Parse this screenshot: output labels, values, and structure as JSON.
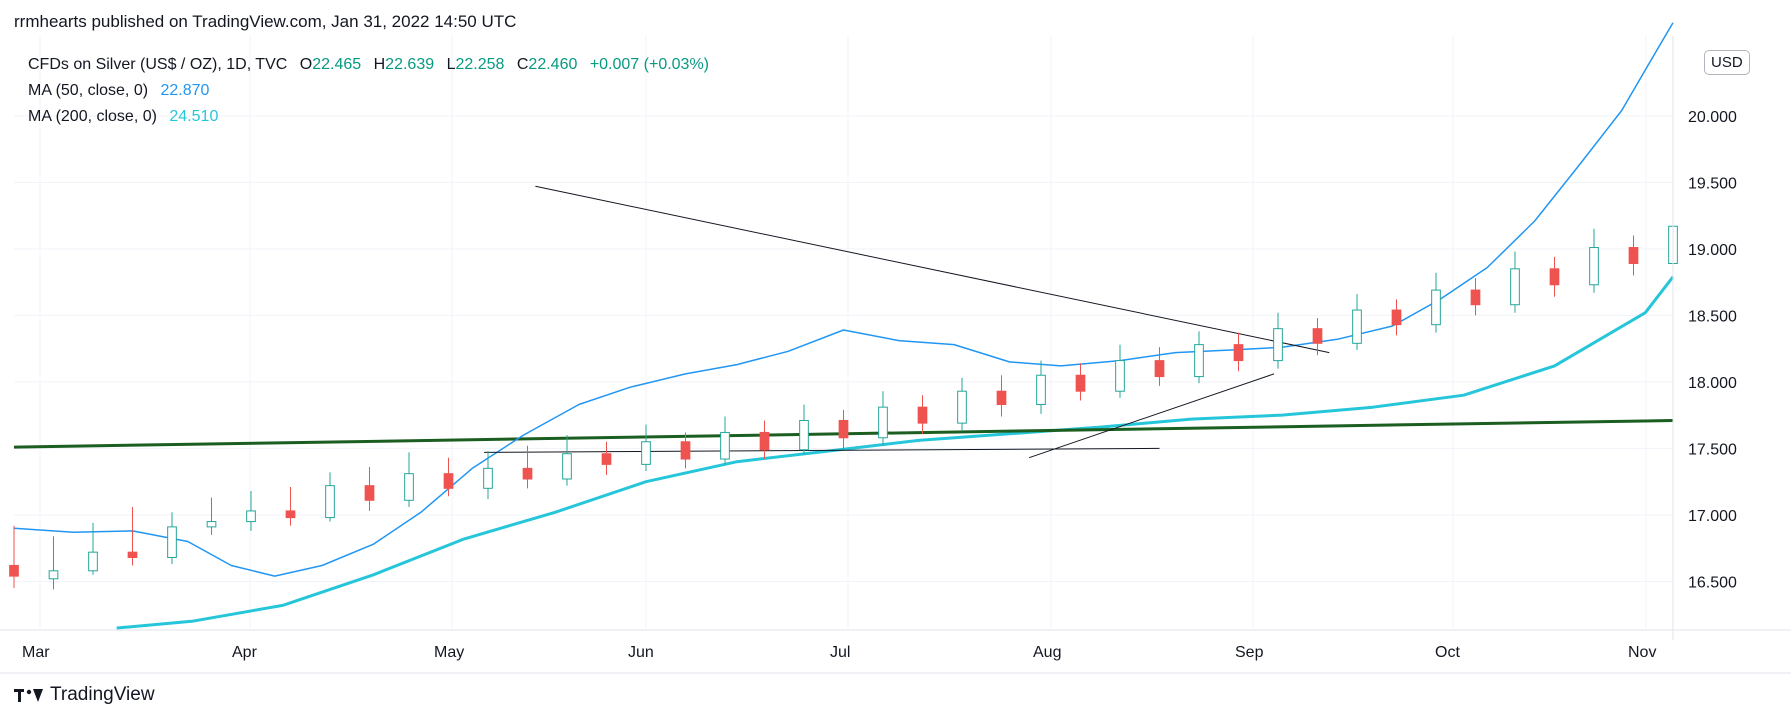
{
  "header": {
    "publisher_line": "rrmhearts published on TradingView.com, Jan 31, 2022 14:50 UTC"
  },
  "legend": {
    "symbol": "CFDs on Silver (US$ / OZ), 1D, TVC",
    "o_label": "O",
    "o_value": "22.465",
    "h_label": "H",
    "h_value": "22.639",
    "l_label": "L",
    "l_value": "22.258",
    "c_label": "C",
    "c_value": "22.460",
    "change": "+0.007 (+0.03%)",
    "ma50_label": "MA (50, close, 0)",
    "ma50_value": "22.870",
    "ma200_label": "MA (200, close, 0)",
    "ma200_value": "24.510"
  },
  "currency": "USD",
  "footer": {
    "brand": "TradingView"
  },
  "colors": {
    "up": "#26a69a",
    "down": "#ef5350",
    "ma50": "#2196f3",
    "ma200": "#26c6da",
    "support": "#1b5e20",
    "trendline": "#131722"
  },
  "chart_data": {
    "type": "candlestick",
    "x_tick_labels": [
      "Mar",
      "Apr",
      "May",
      "Jun",
      "Jul",
      "Aug",
      "Sep",
      "Oct",
      "Nov"
    ],
    "y_tick_labels": [
      "16.500",
      "17.000",
      "17.500",
      "18.000",
      "18.500",
      "19.000",
      "19.500",
      "20.000"
    ],
    "y_ticks": [
      16.5,
      17.0,
      17.5,
      18.0,
      18.5,
      19.0,
      19.5,
      20.0
    ],
    "ylim": [
      16.15,
      20.6
    ],
    "x_domain": [
      0,
      42
    ],
    "candles": [
      [
        16.62,
        16.54,
        16.92,
        16.45
      ],
      [
        16.52,
        16.58,
        16.84,
        16.44
      ],
      [
        16.58,
        16.72,
        16.94,
        16.55
      ],
      [
        16.72,
        16.68,
        17.06,
        16.62
      ],
      [
        16.68,
        16.91,
        17.02,
        16.63
      ],
      [
        16.91,
        16.95,
        17.13,
        16.85
      ],
      [
        16.95,
        17.03,
        17.18,
        16.88
      ],
      [
        17.03,
        16.98,
        17.21,
        16.92
      ],
      [
        16.98,
        17.22,
        17.32,
        16.95
      ],
      [
        17.22,
        17.11,
        17.36,
        17.03
      ],
      [
        17.11,
        17.31,
        17.47,
        17.06
      ],
      [
        17.31,
        17.2,
        17.43,
        17.14
      ],
      [
        17.2,
        17.35,
        17.48,
        17.12
      ],
      [
        17.35,
        17.27,
        17.52,
        17.2
      ],
      [
        17.27,
        17.46,
        17.6,
        17.22
      ],
      [
        17.46,
        17.38,
        17.55,
        17.3
      ],
      [
        17.38,
        17.55,
        17.68,
        17.33
      ],
      [
        17.55,
        17.42,
        17.62,
        17.35
      ],
      [
        17.42,
        17.62,
        17.74,
        17.38
      ],
      [
        17.62,
        17.49,
        17.71,
        17.42
      ],
      [
        17.49,
        17.71,
        17.83,
        17.45
      ],
      [
        17.71,
        17.58,
        17.79,
        17.49
      ],
      [
        17.58,
        17.81,
        17.93,
        17.52
      ],
      [
        17.81,
        17.69,
        17.9,
        17.61
      ],
      [
        17.69,
        17.93,
        18.03,
        17.63
      ],
      [
        17.93,
        17.83,
        18.05,
        17.74
      ],
      [
        17.83,
        18.05,
        18.16,
        17.76
      ],
      [
        18.05,
        17.93,
        18.14,
        17.86
      ],
      [
        17.93,
        18.16,
        18.28,
        17.88
      ],
      [
        18.16,
        18.04,
        18.26,
        17.97
      ],
      [
        18.04,
        18.28,
        18.38,
        17.99
      ],
      [
        18.28,
        18.16,
        18.37,
        18.08
      ],
      [
        18.16,
        18.4,
        18.52,
        18.1
      ],
      [
        18.4,
        18.29,
        18.48,
        18.2
      ],
      [
        18.29,
        18.54,
        18.66,
        18.24
      ],
      [
        18.54,
        18.43,
        18.62,
        18.35
      ],
      [
        18.43,
        18.69,
        18.82,
        18.37
      ],
      [
        18.69,
        18.58,
        18.78,
        18.5
      ],
      [
        18.58,
        18.85,
        18.98,
        18.52
      ],
      [
        18.85,
        18.73,
        18.94,
        18.64
      ],
      [
        18.73,
        19.01,
        19.15,
        18.67
      ],
      [
        19.01,
        18.89,
        19.1,
        18.8
      ],
      [
        18.89,
        19.17,
        19.3,
        18.84
      ]
    ],
    "ma50_series": [
      [
        0,
        16.9
      ],
      [
        1.5,
        16.87
      ],
      [
        3,
        16.88
      ],
      [
        4.4,
        16.8
      ],
      [
        5.5,
        16.62
      ],
      [
        6.6,
        16.54
      ],
      [
        7.8,
        16.62
      ],
      [
        9.1,
        16.78
      ],
      [
        10.3,
        17.02
      ],
      [
        11.6,
        17.35
      ],
      [
        12.9,
        17.6
      ],
      [
        14.3,
        17.83
      ],
      [
        15.6,
        17.96
      ],
      [
        17.0,
        18.06
      ],
      [
        18.3,
        18.13
      ],
      [
        19.6,
        18.23
      ],
      [
        21.0,
        18.39
      ],
      [
        22.4,
        18.31
      ],
      [
        23.8,
        18.28
      ],
      [
        25.2,
        18.15
      ],
      [
        26.5,
        18.12
      ],
      [
        28.0,
        18.16
      ],
      [
        29.4,
        18.22
      ],
      [
        30.8,
        18.24
      ],
      [
        32.1,
        18.26
      ],
      [
        33.5,
        18.32
      ],
      [
        34.9,
        18.42
      ],
      [
        36.1,
        18.62
      ],
      [
        37.3,
        18.86
      ],
      [
        38.5,
        19.21
      ],
      [
        39.6,
        19.62
      ],
      [
        40.7,
        20.04
      ],
      [
        41.7,
        20.55
      ],
      [
        42.0,
        20.7
      ]
    ],
    "ma200_series": [
      [
        2.6,
        16.15
      ],
      [
        4.5,
        16.2
      ],
      [
        6.8,
        16.32
      ],
      [
        9.1,
        16.55
      ],
      [
        11.4,
        16.82
      ],
      [
        13.7,
        17.02
      ],
      [
        16.0,
        17.25
      ],
      [
        18.3,
        17.4
      ],
      [
        20.6,
        17.48
      ],
      [
        22.9,
        17.56
      ],
      [
        25.2,
        17.61
      ],
      [
        27.5,
        17.66
      ],
      [
        29.8,
        17.72
      ],
      [
        32.1,
        17.75
      ],
      [
        34.4,
        17.81
      ],
      [
        36.7,
        17.9
      ],
      [
        39.0,
        18.12
      ],
      [
        41.3,
        18.52
      ],
      [
        42.0,
        18.79
      ]
    ],
    "support_line": [
      [
        0,
        17.51
      ],
      [
        42,
        17.71
      ]
    ],
    "trendlines": [
      [
        [
          13.2,
          19.47
        ],
        [
          33.3,
          18.22
        ]
      ],
      [
        [
          11.9,
          17.47
        ],
        [
          29.0,
          17.5
        ]
      ],
      [
        [
          25.7,
          17.43
        ],
        [
          31.9,
          18.06
        ]
      ]
    ]
  }
}
